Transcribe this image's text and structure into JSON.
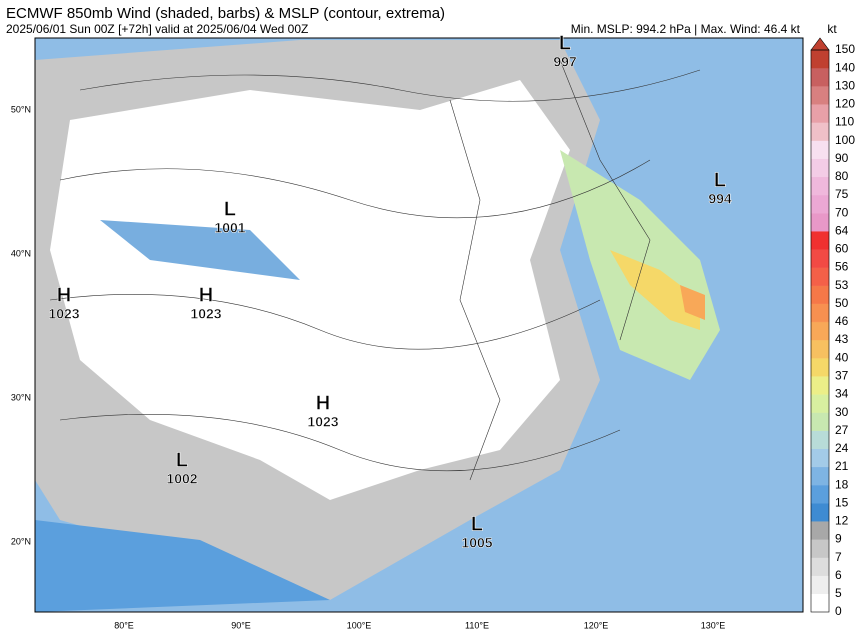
{
  "header": {
    "title": "ECMWF 850mb Wind (shaded, barbs) & MSLP (contour, extrema)",
    "subtitle": "2025/06/01 Sun 00Z [+72h] valid at 2025/06/04 Wed 00Z",
    "info": "Min. MSLP: 994.2 hPa | Max. Wind: 46.4 kt"
  },
  "colorbar": {
    "unit": "kt",
    "levels": [
      "0",
      "5",
      "6",
      "7",
      "9",
      "12",
      "15",
      "18",
      "21",
      "24",
      "27",
      "30",
      "34",
      "37",
      "40",
      "43",
      "46",
      "50",
      "53",
      "56",
      "60",
      "64",
      "70",
      "75",
      "80",
      "90",
      "100",
      "110",
      "120",
      "130",
      "140",
      "150"
    ],
    "colors": [
      "#ffffff",
      "#eeeeee",
      "#dddddd",
      "#c7c7c7",
      "#a8a8a8",
      "#3e8bd2",
      "#5b9fdd",
      "#7eb4e3",
      "#a3cbe8",
      "#b8dcd8",
      "#c8e8b0",
      "#d8f0a0",
      "#ecef88",
      "#f5d868",
      "#f7c060",
      "#f8a858",
      "#f79050",
      "#f57848",
      "#f46048",
      "#f24a44",
      "#f03030",
      "#e898c8",
      "#eca8d4",
      "#f0b8dc",
      "#f4cce6",
      "#f8e0f0",
      "#f0c0c8",
      "#e8a0a8",
      "#d88080",
      "#c86060",
      "#c04030"
    ]
  },
  "lon_labels": [
    "80°E",
    "90°E",
    "100°E",
    "110°E",
    "120°E",
    "130°E"
  ],
  "lat_labels": [
    "50°N",
    "40°N",
    "30°N",
    "20°N"
  ],
  "centers": [
    {
      "symbol": "H",
      "value": "1023"
    },
    {
      "symbol": "H",
      "value": "1023"
    },
    {
      "symbol": "H",
      "value": "1023"
    },
    {
      "symbol": "L",
      "value": "1001"
    },
    {
      "symbol": "L",
      "value": "997"
    },
    {
      "symbol": "L",
      "value": "994"
    },
    {
      "symbol": "L",
      "value": "1002"
    },
    {
      "symbol": "L",
      "value": "1005"
    }
  ]
}
